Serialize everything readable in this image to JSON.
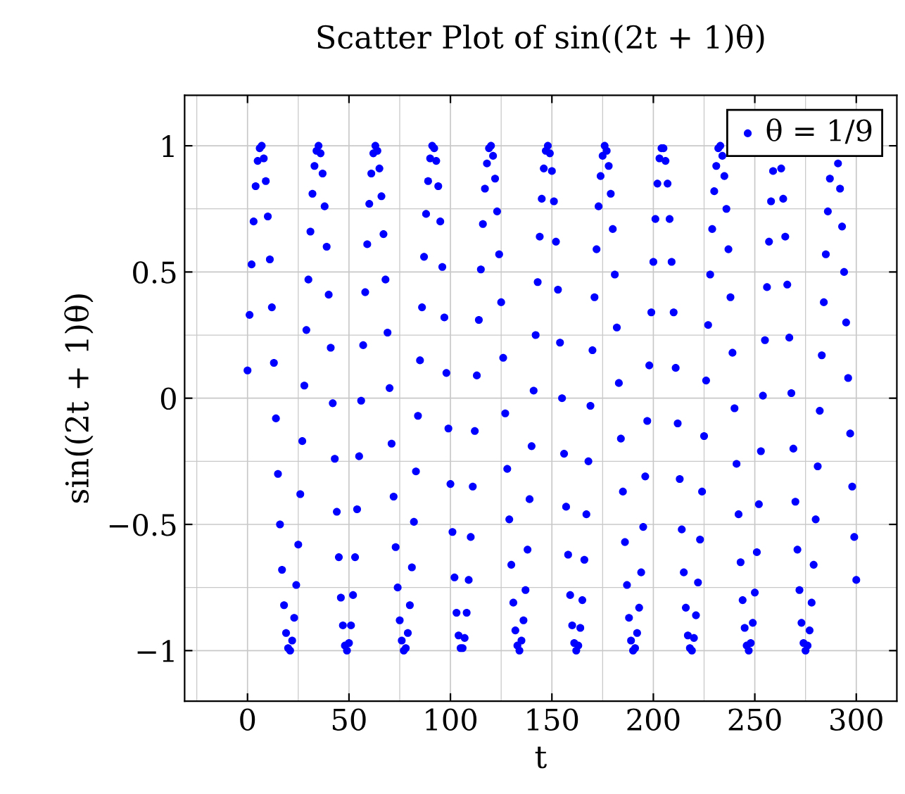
{
  "chart_data": {
    "type": "scatter",
    "title": "Scatter Plot of sin((2t + 1)θ)",
    "xlabel": "t",
    "ylabel": "sin((2t + 1)θ)",
    "xlim": [
      -31,
      320
    ],
    "ylim": [
      -1.2,
      1.2
    ],
    "xticks": [
      0,
      50,
      100,
      150,
      200,
      250,
      300
    ],
    "yticks": [
      {
        "value": -1,
        "label": "−1"
      },
      {
        "value": -0.5,
        "label": "−0.5"
      },
      0,
      0.5,
      1
    ],
    "grid": true,
    "legend": "top right",
    "marker": "circle",
    "x": [
      0,
      1,
      2,
      3,
      4,
      5,
      6,
      7,
      8,
      9,
      10,
      11,
      12,
      13,
      14,
      15,
      16,
      17,
      18,
      19,
      20,
      21,
      22,
      23,
      24,
      25,
      26,
      27,
      28,
      29,
      30,
      31,
      32,
      33,
      34,
      35,
      36,
      37,
      38,
      39,
      40,
      41,
      42,
      43,
      44,
      45,
      46,
      47,
      48,
      49,
      50,
      51,
      52,
      53,
      54,
      55,
      56,
      57,
      58,
      59,
      60,
      61,
      62,
      63,
      64,
      65,
      66,
      67,
      68,
      69,
      70,
      71,
      72,
      73,
      74,
      75,
      76,
      77,
      78,
      79,
      80,
      81,
      82,
      83,
      84,
      85,
      86,
      87,
      88,
      89,
      90,
      91,
      92,
      93,
      94,
      95,
      96,
      97,
      98,
      99,
      100,
      101,
      102,
      103,
      104,
      105,
      106,
      107,
      108,
      109,
      110,
      111,
      112,
      113,
      114,
      115,
      116,
      117,
      118,
      119,
      120,
      121,
      122,
      123,
      124,
      125,
      126,
      127,
      128,
      129,
      130,
      131,
      132,
      133,
      134,
      135,
      136,
      137,
      138,
      139,
      140,
      141,
      142,
      143,
      144,
      145,
      146,
      147,
      148,
      149,
      150,
      151,
      152,
      153,
      154,
      155,
      156,
      157,
      158,
      159,
      160,
      161,
      162,
      163,
      164,
      165,
      166,
      167,
      168,
      169,
      170,
      171,
      172,
      173,
      174,
      175,
      176,
      177,
      178,
      179,
      180,
      181,
      182,
      183,
      184,
      185,
      186,
      187,
      188,
      189,
      190,
      191,
      192,
      193,
      194,
      195,
      196,
      197,
      198,
      199,
      200,
      201,
      202,
      203,
      204,
      205,
      206,
      207,
      208,
      209,
      210,
      211,
      212,
      213,
      214,
      215,
      216,
      217,
      218,
      219,
      220,
      221,
      222,
      223,
      224,
      225,
      226,
      227,
      228,
      229,
      230,
      231,
      232,
      233,
      234,
      235,
      236,
      237,
      238,
      239,
      240,
      241,
      242,
      243,
      244,
      245,
      246,
      247,
      248,
      249,
      250,
      251,
      252,
      253,
      254,
      255,
      256,
      257,
      258,
      259,
      260,
      261,
      262,
      263,
      264,
      265,
      266,
      267,
      268,
      269,
      270,
      271,
      272,
      273,
      274,
      275,
      276,
      277,
      278,
      279,
      280,
      281,
      282,
      283,
      284,
      285,
      286,
      287,
      288,
      289,
      290,
      291,
      292,
      293,
      294,
      295,
      296,
      297,
      298,
      299,
      300
    ],
    "series": [
      {
        "name": "θ = 1/9",
        "color": "#0000ff",
        "values": [
          0.11,
          0.33,
          0.53,
          0.7,
          0.84,
          0.94,
          0.99,
          1.0,
          0.95,
          0.86,
          0.72,
          0.55,
          0.36,
          0.14,
          -0.08,
          -0.3,
          -0.5,
          -0.68,
          -0.82,
          -0.93,
          -0.99,
          -1.0,
          -0.96,
          -0.87,
          -0.74,
          -0.58,
          -0.38,
          -0.17,
          0.05,
          0.27,
          0.47,
          0.66,
          0.81,
          0.92,
          0.98,
          1.0,
          0.97,
          0.89,
          0.76,
          0.6,
          0.41,
          0.2,
          -0.02,
          -0.24,
          -0.45,
          -0.63,
          -0.79,
          -0.9,
          -0.98,
          -1.0,
          -0.97,
          -0.9,
          -0.78,
          -0.63,
          -0.44,
          -0.23,
          -0.01,
          0.21,
          0.42,
          0.61,
          0.77,
          0.89,
          0.97,
          1.0,
          0.98,
          0.91,
          0.8,
          0.65,
          0.47,
          0.26,
          0.04,
          -0.18,
          -0.39,
          -0.59,
          -0.75,
          -0.88,
          -0.96,
          -1.0,
          -0.99,
          -0.93,
          -0.82,
          -0.67,
          -0.49,
          -0.29,
          -0.07,
          0.15,
          0.36,
          0.56,
          0.73,
          0.86,
          0.95,
          1.0,
          0.99,
          0.94,
          0.84,
          0.7,
          0.52,
          0.32,
          0.1,
          -0.12,
          -0.34,
          -0.53,
          -0.71,
          -0.85,
          -0.94,
          -0.99,
          -0.99,
          -0.95,
          -0.85,
          -0.72,
          -0.55,
          -0.35,
          -0.13,
          0.09,
          0.31,
          0.51,
          0.69,
          0.83,
          0.93,
          0.99,
          1.0,
          0.96,
          0.87,
          0.74,
          0.57,
          0.38,
          0.16,
          -0.06,
          -0.28,
          -0.48,
          -0.66,
          -0.81,
          -0.92,
          -0.98,
          -1.0,
          -0.96,
          -0.88,
          -0.76,
          -0.6,
          -0.4,
          -0.19,
          0.03,
          0.25,
          0.46,
          0.64,
          0.79,
          0.91,
          0.98,
          1.0,
          0.97,
          0.9,
          0.78,
          0.62,
          0.43,
          0.22,
          0.0,
          -0.22,
          -0.43,
          -0.62,
          -0.78,
          -0.9,
          -0.97,
          -1.0,
          -0.98,
          -0.91,
          -0.8,
          -0.64,
          -0.46,
          -0.25,
          -0.03,
          0.19,
          0.4,
          0.59,
          0.76,
          0.88,
          0.96,
          1.0,
          0.98,
          0.92,
          0.81,
          0.67,
          0.49,
          0.28,
          0.06,
          -0.16,
          -0.37,
          -0.57,
          -0.74,
          -0.87,
          -0.96,
          -1.0,
          -0.99,
          -0.93,
          -0.83,
          -0.69,
          -0.51,
          -0.31,
          -0.09,
          0.13,
          0.34,
          0.54,
          0.71,
          0.85,
          0.95,
          0.99,
          0.99,
          0.94,
          0.85,
          0.71,
          0.54,
          0.34,
          0.12,
          -0.1,
          -0.32,
          -0.52,
          -0.69,
          -0.83,
          -0.94,
          -0.99,
          -1.0,
          -0.95,
          -0.86,
          -0.73,
          -0.56,
          -0.37,
          -0.15,
          0.07,
          0.29,
          0.49,
          0.67,
          0.82,
          0.92,
          0.99,
          1.0,
          0.96,
          0.88,
          0.75,
          0.59,
          0.4,
          0.18,
          -0.04,
          -0.26,
          -0.46,
          -0.65,
          -0.8,
          -0.91,
          -0.98,
          -1.0,
          -0.97,
          -0.89,
          -0.77,
          -0.61,
          -0.42,
          -0.21,
          0.01,
          0.23,
          0.44,
          0.62,
          0.78,
          0.9,
          null,
          null,
          null,
          0.91,
          0.79,
          0.64,
          0.45,
          0.24,
          0.02,
          -0.2,
          -0.41,
          -0.6,
          -0.76,
          -0.89,
          -0.97,
          -1.0,
          -0.98,
          -0.92,
          -0.81,
          -0.66,
          -0.48,
          -0.27,
          -0.05,
          0.17,
          0.38,
          0.57,
          0.74,
          0.87,
          null,
          null,
          null,
          0.93,
          0.83,
          0.68,
          0.5,
          0.3,
          0.08,
          -0.14,
          -0.35,
          -0.55,
          -0.72
        ]
      }
    ]
  }
}
